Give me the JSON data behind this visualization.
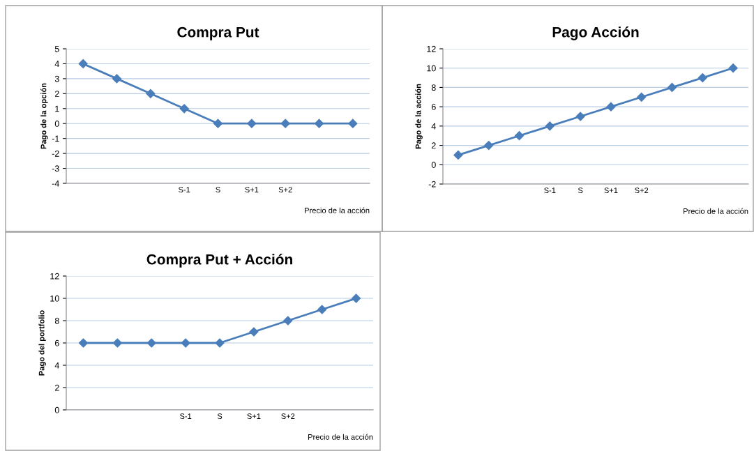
{
  "chart_data": [
    {
      "type": "line",
      "title": "Compra Put",
      "xlabel": "Precio de la acción",
      "ylabel": "Pago de la opción",
      "categories": [
        null,
        null,
        null,
        "S-1",
        "S",
        "S+1",
        "S+2",
        null,
        null
      ],
      "series": [
        {
          "color": "#4a7ebb",
          "values": [
            4,
            3,
            2,
            1,
            0,
            0,
            0,
            0,
            0
          ]
        }
      ],
      "ylim": [
        -4,
        5
      ],
      "yticks": [
        -4,
        -3,
        -2,
        -1,
        0,
        1,
        2,
        3,
        4,
        5
      ],
      "grid": "y",
      "marker": "diamond",
      "line_style": "solid"
    },
    {
      "type": "line",
      "title": "Pago Acción",
      "xlabel": "Precio de la acción",
      "ylabel": "Pago de la acción",
      "categories": [
        null,
        null,
        null,
        "S-1",
        "S",
        "S+1",
        "S+2",
        null,
        null,
        null
      ],
      "series": [
        {
          "color": "#4a7ebb",
          "values": [
            1,
            2,
            3,
            4,
            5,
            6,
            7,
            8,
            9,
            10
          ]
        }
      ],
      "ylim": [
        -2,
        12
      ],
      "yticks": [
        -2,
        0,
        2,
        4,
        6,
        8,
        10,
        12
      ],
      "grid": "y",
      "marker": "diamond",
      "line_style": "solid"
    },
    {
      "type": "line",
      "title": "Compra Put + Acción",
      "xlabel": "Precio de la acción",
      "ylabel": "Pago del portfolio",
      "categories": [
        null,
        null,
        null,
        "S-1",
        "S",
        "S+1",
        "S+2",
        null,
        null
      ],
      "series": [
        {
          "color": "#4a7ebb",
          "values": [
            6,
            6,
            6,
            6,
            6,
            7,
            8,
            9,
            10
          ]
        }
      ],
      "ylim": [
        0,
        12
      ],
      "yticks": [
        0,
        2,
        4,
        6,
        8,
        10,
        12
      ],
      "grid": "y",
      "marker": "diamond",
      "line_style": "solid"
    }
  ]
}
